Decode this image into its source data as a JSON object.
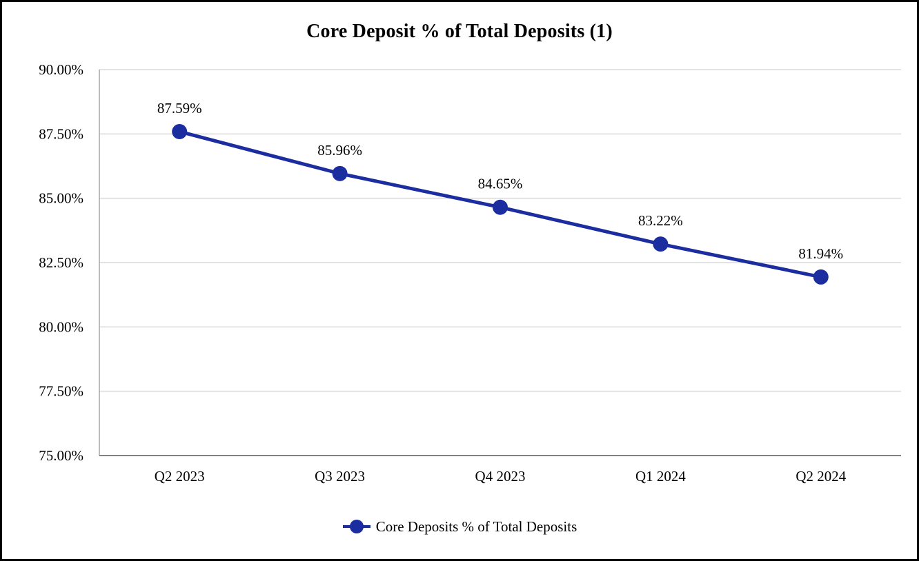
{
  "chart_data": {
    "type": "line",
    "title": "Core Deposit % of Total Deposits (1)",
    "categories": [
      "Q2 2023",
      "Q3 2023",
      "Q4 2023",
      "Q1 2024",
      "Q2 2024"
    ],
    "series": [
      {
        "name": "Core Deposits % of Total Deposits",
        "values": [
          87.59,
          85.96,
          84.65,
          83.22,
          81.94
        ],
        "data_labels": [
          "87.59%",
          "85.96%",
          "84.65%",
          "83.22%",
          "81.94%"
        ],
        "color": "#1C2DA0"
      }
    ],
    "ylabel": "",
    "xlabel": "",
    "ylim": [
      75,
      90
    ],
    "ytick_step": 2.5,
    "ytick_labels": [
      "75.00%",
      "77.50%",
      "80.00%",
      "82.50%",
      "85.00%",
      "87.50%",
      "90.00%"
    ],
    "grid": true,
    "legend_position": "bottom",
    "colors": {
      "gridline": "#D9D9D9",
      "bottom_axis": "#808080",
      "left_axis": "#A6A6A6",
      "text": "#000000",
      "background": "#FFFFFF",
      "frame_border": "#000000"
    }
  }
}
